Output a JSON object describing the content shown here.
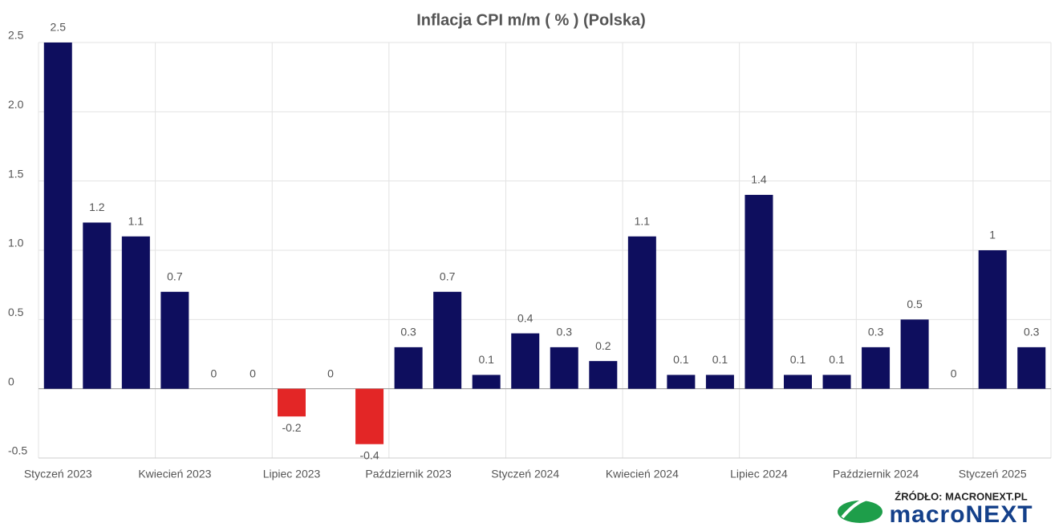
{
  "chart_data": {
    "type": "bar",
    "title": "Inflacja CPI m/m ( % ) (Polska)",
    "categories": [
      "Styczeń 2023",
      null,
      null,
      "Kwiecień 2023",
      null,
      null,
      "Lipiec 2023",
      null,
      null,
      "Październik 2023",
      null,
      null,
      "Styczeń 2024",
      null,
      null,
      "Kwiecień 2024",
      null,
      null,
      "Lipiec 2024",
      null,
      null,
      "Październik 2024",
      null,
      null,
      "Styczeń 2025",
      null
    ],
    "values": [
      2.5,
      1.2,
      1.1,
      0.7,
      0,
      0,
      -0.2,
      0,
      -0.4,
      0.3,
      0.7,
      0.1,
      0.4,
      0.3,
      0.2,
      1.1,
      0.1,
      0.1,
      1.4,
      0.1,
      0.1,
      0.3,
      0.5,
      0,
      1,
      0.3
    ],
    "color": "#0e0e5e",
    "negative_color": "#e32626",
    "ylim": [
      -0.5,
      2.5
    ],
    "yticks": [
      -0.5,
      0,
      0.5,
      {
        "value": 1,
        "label": "1.0"
      },
      1.5,
      {
        "value": 2,
        "label": "2.0"
      },
      2.5
    ],
    "grid": true,
    "source": "ŹRÓDŁO: MACRONEXT.PL",
    "logo": "macroNEXT"
  }
}
